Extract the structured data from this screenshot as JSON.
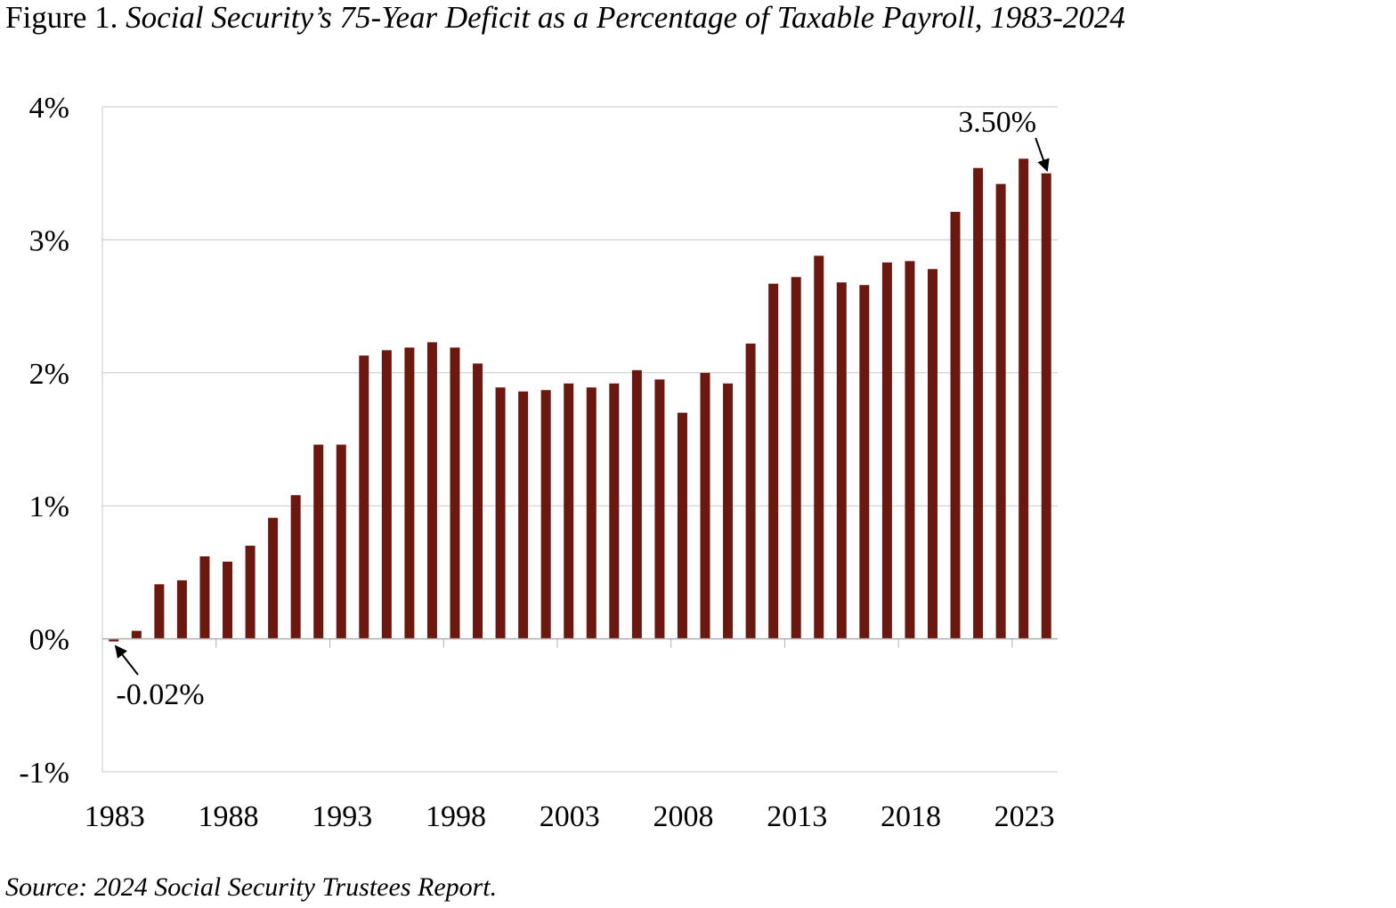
{
  "title": {
    "prefix": "Figure 1. ",
    "text": "Social Security’s 75-Year Deficit as a Percentage of Taxable Payroll, 1983-2024"
  },
  "source": {
    "label": "Source",
    "text": ": 2024 Social Security Trustees Report."
  },
  "chart_data": {
    "type": "bar",
    "title": "Social Security’s 75-Year Deficit as a Percentage of Taxable Payroll, 1983-2024",
    "xlabel": "",
    "ylabel": "",
    "ylim": [
      -1,
      4
    ],
    "yticks": [
      "-1%",
      "0%",
      "1%",
      "2%",
      "3%",
      "4%"
    ],
    "ytick_values": [
      -1,
      0,
      1,
      2,
      3,
      4
    ],
    "xtick_labels": [
      "1983",
      "1988",
      "1993",
      "1998",
      "2003",
      "2008",
      "2013",
      "2018",
      "2023"
    ],
    "grid": "horizontal",
    "bar_color": "#6b1910",
    "categories": [
      1983,
      1984,
      1985,
      1986,
      1987,
      1988,
      1989,
      1990,
      1991,
      1992,
      1993,
      1994,
      1995,
      1996,
      1997,
      1998,
      1999,
      2000,
      2001,
      2002,
      2003,
      2004,
      2005,
      2006,
      2007,
      2008,
      2009,
      2010,
      2011,
      2012,
      2013,
      2014,
      2015,
      2016,
      2017,
      2018,
      2019,
      2020,
      2021,
      2022,
      2023,
      2024
    ],
    "values": [
      -0.02,
      0.06,
      0.41,
      0.44,
      0.62,
      0.58,
      0.7,
      0.91,
      1.08,
      1.46,
      1.46,
      2.13,
      2.17,
      2.19,
      2.23,
      2.19,
      2.07,
      1.89,
      1.86,
      1.87,
      1.92,
      1.89,
      1.92,
      2.02,
      1.95,
      1.7,
      2.0,
      1.92,
      2.22,
      2.67,
      2.72,
      2.88,
      2.68,
      2.66,
      2.83,
      2.84,
      2.78,
      3.21,
      3.54,
      3.42,
      3.61,
      3.5
    ],
    "annotations": [
      {
        "text": "3.50%",
        "category": 2024
      },
      {
        "text": "-0.02%",
        "category": 1983
      }
    ]
  }
}
